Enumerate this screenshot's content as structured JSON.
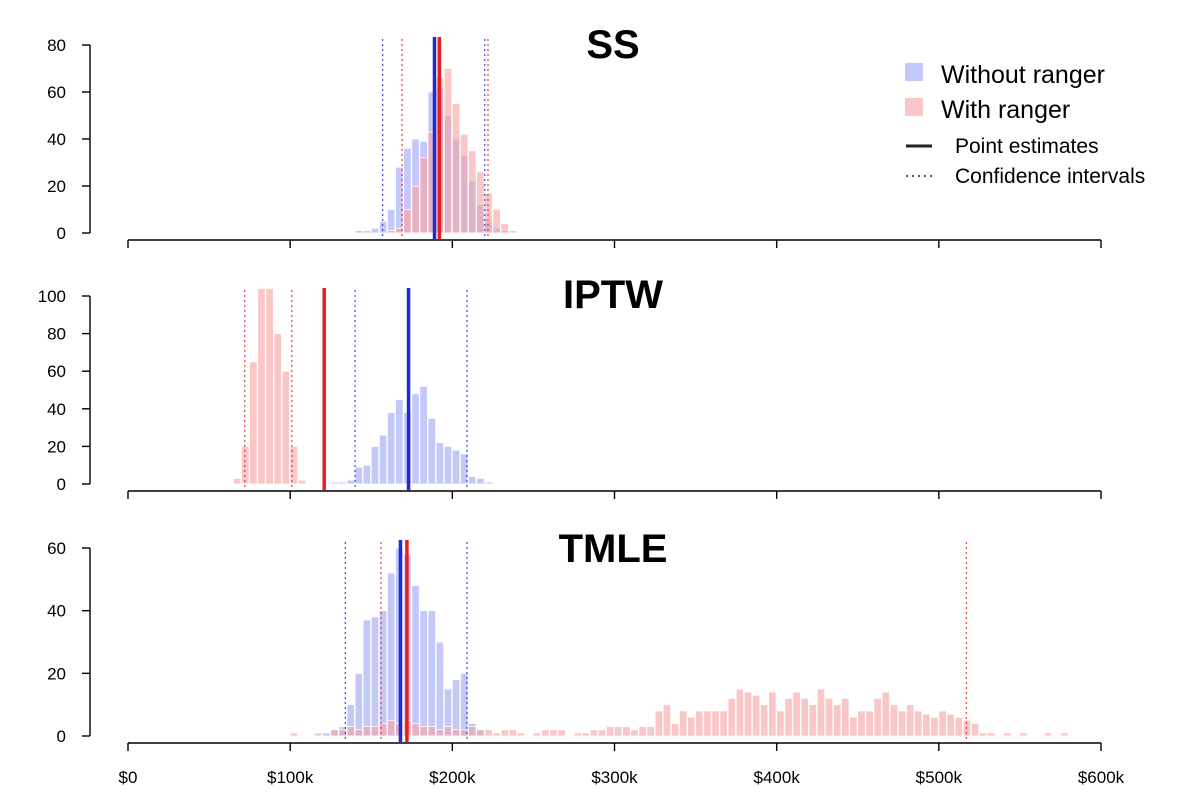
{
  "chart_data": {
    "type": "bar",
    "colors": {
      "without": "#9fa6f5",
      "with": "#f7a3a3",
      "without_line": "#1c2bd6",
      "with_line": "#e81e1e"
    },
    "legend": {
      "placement": "top-right",
      "items": [
        {
          "key": "without",
          "label": "Without ranger",
          "kind": "fill"
        },
        {
          "key": "with",
          "label": "With ranger",
          "kind": "fill"
        },
        {
          "key": "point",
          "label": "Point estimates",
          "kind": "solid"
        },
        {
          "key": "ci",
          "label": "Confidence intervals",
          "kind": "dotted"
        }
      ]
    },
    "x_axis": {
      "range": [
        0,
        600000
      ],
      "ticks": [
        0,
        100000,
        200000,
        300000,
        400000,
        500000,
        600000
      ],
      "tick_labels": [
        "$0",
        "$100k",
        "$200k",
        "$300k",
        "$400k",
        "$500k",
        "$600k"
      ]
    },
    "bin_width": 5000,
    "panels": [
      {
        "title": "SS",
        "ylim": [
          0,
          80
        ],
        "yticks": [
          0,
          20,
          40,
          60,
          80
        ],
        "ytick_labels": [
          "0",
          "20",
          "40",
          "60",
          "80"
        ],
        "series": [
          {
            "name": "Without ranger",
            "key": "without",
            "point": 189000,
            "ci": [
              157000,
              220000
            ],
            "bins": [
              [
                140000,
                1
              ],
              [
                145000,
                1
              ],
              [
                150000,
                2
              ],
              [
                155000,
                5
              ],
              [
                160000,
                10
              ],
              [
                165000,
                28
              ],
              [
                170000,
                36
              ],
              [
                175000,
                40
              ],
              [
                180000,
                39
              ],
              [
                185000,
                60
              ],
              [
                190000,
                62
              ],
              [
                195000,
                50
              ],
              [
                200000,
                40
              ],
              [
                205000,
                33
              ],
              [
                210000,
                22
              ],
              [
                215000,
                12
              ],
              [
                220000,
                5
              ],
              [
                225000,
                2
              ],
              [
                230000,
                1
              ]
            ]
          },
          {
            "name": "With ranger",
            "key": "with",
            "point": 192000,
            "ci": [
              169000,
              222000
            ],
            "bins": [
              [
                160000,
                1
              ],
              [
                165000,
                2
              ],
              [
                170000,
                10
              ],
              [
                175000,
                20
              ],
              [
                180000,
                32
              ],
              [
                185000,
                43
              ],
              [
                190000,
                66
              ],
              [
                195000,
                70
              ],
              [
                200000,
                55
              ],
              [
                205000,
                42
              ],
              [
                210000,
                35
              ],
              [
                215000,
                26
              ],
              [
                220000,
                17
              ],
              [
                225000,
                10
              ],
              [
                230000,
                4
              ],
              [
                235000,
                1
              ]
            ]
          }
        ]
      },
      {
        "title": "IPTW",
        "ylim": [
          0,
          100
        ],
        "yticks": [
          0,
          20,
          40,
          60,
          80,
          100
        ],
        "ytick_labels": [
          "0",
          "20",
          "40",
          "60",
          "80",
          "100"
        ],
        "series": [
          {
            "name": "Without ranger",
            "key": "without",
            "point": 173000,
            "ci": [
              140000,
              209000
            ],
            "bins": [
              [
                125000,
                1
              ],
              [
                130000,
                1
              ],
              [
                135000,
                2
              ],
              [
                140000,
                9
              ],
              [
                145000,
                10
              ],
              [
                150000,
                20
              ],
              [
                155000,
                26
              ],
              [
                160000,
                38
              ],
              [
                165000,
                45
              ],
              [
                170000,
                38
              ],
              [
                175000,
                48
              ],
              [
                180000,
                52
              ],
              [
                185000,
                35
              ],
              [
                190000,
                22
              ],
              [
                195000,
                20
              ],
              [
                200000,
                18
              ],
              [
                205000,
                16
              ],
              [
                210000,
                4
              ],
              [
                215000,
                3
              ],
              [
                220000,
                1
              ]
            ]
          },
          {
            "name": "With ranger",
            "key": "with",
            "point": 121000,
            "ci": [
              72000,
              101000
            ],
            "bins": [
              [
                65000,
                3
              ],
              [
                70000,
                20
              ],
              [
                75000,
                65
              ],
              [
                80000,
                104
              ],
              [
                85000,
                104
              ],
              [
                90000,
                80
              ],
              [
                95000,
                60
              ],
              [
                100000,
                20
              ],
              [
                105000,
                2
              ]
            ]
          }
        ]
      },
      {
        "title": "TMLE",
        "ylim": [
          0,
          60
        ],
        "yticks": [
          0,
          20,
          40,
          60
        ],
        "ytick_labels": [
          "0",
          "20",
          "40",
          "60"
        ],
        "series": [
          {
            "name": "Without ranger",
            "key": "without",
            "point": 168000,
            "ci": [
              134000,
              209000
            ],
            "bins": [
              [
                120000,
                1
              ],
              [
                125000,
                2
              ],
              [
                130000,
                3
              ],
              [
                135000,
                10
              ],
              [
                140000,
                20
              ],
              [
                145000,
                37
              ],
              [
                150000,
                38
              ],
              [
                155000,
                40
              ],
              [
                160000,
                52
              ],
              [
                165000,
                60
              ],
              [
                170000,
                58
              ],
              [
                175000,
                48
              ],
              [
                180000,
                40
              ],
              [
                185000,
                40
              ],
              [
                190000,
                30
              ],
              [
                195000,
                15
              ],
              [
                200000,
                18
              ],
              [
                205000,
                20
              ],
              [
                210000,
                4
              ],
              [
                215000,
                2
              ]
            ]
          },
          {
            "name": "With ranger",
            "key": "with",
            "point": 172000,
            "ci": [
              156000,
              517000
            ],
            "bins": [
              [
                100000,
                1
              ],
              [
                115000,
                1
              ],
              [
                125000,
                2
              ],
              [
                130000,
                2
              ],
              [
                135000,
                3
              ],
              [
                140000,
                2
              ],
              [
                145000,
                3
              ],
              [
                150000,
                3
              ],
              [
                155000,
                4
              ],
              [
                160000,
                5
              ],
              [
                165000,
                4
              ],
              [
                170000,
                5
              ],
              [
                175000,
                4
              ],
              [
                180000,
                3
              ],
              [
                185000,
                3
              ],
              [
                190000,
                2
              ],
              [
                195000,
                3
              ],
              [
                200000,
                2
              ],
              [
                205000,
                2
              ],
              [
                210000,
                3
              ],
              [
                215000,
                2
              ],
              [
                220000,
                2
              ],
              [
                225000,
                1
              ],
              [
                230000,
                2
              ],
              [
                235000,
                2
              ],
              [
                240000,
                1
              ],
              [
                250000,
                1
              ],
              [
                255000,
                2
              ],
              [
                260000,
                2
              ],
              [
                265000,
                2
              ],
              [
                275000,
                1
              ],
              [
                280000,
                1
              ],
              [
                285000,
                2
              ],
              [
                290000,
                2
              ],
              [
                295000,
                3
              ],
              [
                300000,
                3
              ],
              [
                305000,
                3
              ],
              [
                310000,
                2
              ],
              [
                315000,
                3
              ],
              [
                320000,
                3
              ],
              [
                325000,
                8
              ],
              [
                330000,
                10
              ],
              [
                335000,
                4
              ],
              [
                340000,
                8
              ],
              [
                345000,
                6
              ],
              [
                350000,
                8
              ],
              [
                355000,
                8
              ],
              [
                360000,
                8
              ],
              [
                365000,
                8
              ],
              [
                370000,
                12
              ],
              [
                375000,
                15
              ],
              [
                380000,
                14
              ],
              [
                385000,
                13
              ],
              [
                390000,
                10
              ],
              [
                395000,
                14
              ],
              [
                400000,
                8
              ],
              [
                405000,
                12
              ],
              [
                410000,
                14
              ],
              [
                415000,
                12
              ],
              [
                420000,
                10
              ],
              [
                425000,
                15
              ],
              [
                430000,
                12
              ],
              [
                435000,
                10
              ],
              [
                440000,
                12
              ],
              [
                445000,
                6
              ],
              [
                450000,
                8
              ],
              [
                455000,
                8
              ],
              [
                460000,
                12
              ],
              [
                465000,
                14
              ],
              [
                470000,
                10
              ],
              [
                475000,
                8
              ],
              [
                480000,
                10
              ],
              [
                485000,
                8
              ],
              [
                490000,
                7
              ],
              [
                495000,
                6
              ],
              [
                500000,
                8
              ],
              [
                505000,
                7
              ],
              [
                510000,
                6
              ],
              [
                515000,
                5
              ],
              [
                520000,
                4
              ],
              [
                525000,
                1
              ],
              [
                530000,
                1
              ],
              [
                540000,
                1
              ],
              [
                550000,
                1
              ],
              [
                565000,
                1
              ],
              [
                575000,
                1
              ]
            ]
          }
        ]
      }
    ]
  }
}
